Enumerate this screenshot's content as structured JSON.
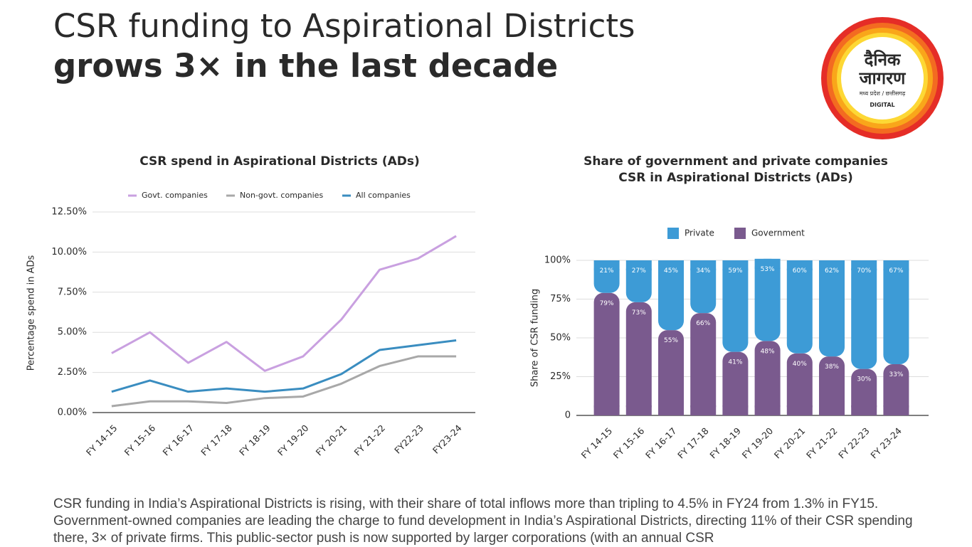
{
  "header": {
    "title": "CSR funding to Aspirational Districts",
    "subtitle": "grows 3× in the last decade"
  },
  "logo": {
    "line1": "दैनिक",
    "line2": "जागरण",
    "region": "मध्य प्रदेश / छत्तीसगढ़",
    "tag": "DIGITAL"
  },
  "body_text": "CSR funding in India’s Aspirational Districts is rising, with their share of total inflows more than tripling to 4.5% in FY24 from 1.3% in FY15. Government-owned companies are leading the charge to fund development in India’s Aspirational Districts, directing 11% of their CSR spending there, 3× of private firms. This public-sector push is now supported by larger corporations (with an annual CSR",
  "chart_data": [
    {
      "type": "line",
      "title": "CSR spend in Aspirational Districts (ADs)",
      "y_label": "Percentage spend in ADs",
      "categories": [
        "FY 14-15",
        "FY 15-16",
        "FY 16-17",
        "FY 17-18",
        "FY 18-19",
        "FY 19-20",
        "FY 20-21",
        "FY 21-22",
        "FY22-23",
        "FY23-24"
      ],
      "series": [
        {
          "name": "Govt. companies",
          "color": "#c9a0e0",
          "values": [
            3.7,
            5.0,
            3.1,
            4.4,
            2.6,
            3.5,
            5.8,
            8.9,
            9.6,
            11.0
          ]
        },
        {
          "name": "Non-govt. companies",
          "color": "#a8a8a8",
          "values": [
            0.4,
            0.7,
            0.7,
            0.6,
            0.9,
            1.0,
            1.8,
            2.9,
            3.5,
            3.5
          ]
        },
        {
          "name": "All companies",
          "color": "#3a8dc0",
          "values": [
            1.3,
            2.0,
            1.3,
            1.5,
            1.3,
            1.5,
            2.4,
            3.9,
            4.2,
            4.5
          ]
        }
      ],
      "ylim": [
        0,
        12.5
      ],
      "yticks": [
        {
          "value": 0,
          "label": "0.00%"
        },
        {
          "value": 2.5,
          "label": "2.50%"
        },
        {
          "value": 5,
          "label": "5.00%"
        },
        {
          "value": 7.5,
          "label": "7.50%"
        },
        {
          "value": 10,
          "label": "10.00%"
        },
        {
          "value": 12.5,
          "label": "12.50%"
        }
      ],
      "grid": true,
      "legend": "top"
    },
    {
      "type": "stacked_bar",
      "title": [
        "Share of government and private companies",
        "CSR in Aspirational Districts (ADs)"
      ],
      "y_label": "Share of CSR funding",
      "categories": [
        "FY 14-15",
        "FY 15-16",
        "FY 16-17",
        "FY 17-18",
        "FY 18-19",
        "FY 19-20",
        "FY 20-21",
        "FY 21-22",
        "FY 22-23",
        "FY 23-24"
      ],
      "series": [
        {
          "name": "Private",
          "color": "#3d9bd6",
          "values": [
            21,
            27,
            45,
            34,
            59,
            53,
            60,
            62,
            70,
            67
          ],
          "value_labels": [
            "21%",
            "27%",
            "45%",
            "34%",
            "59%",
            "53%",
            "60%",
            "62%",
            "70%",
            "67%"
          ]
        },
        {
          "name": "Government",
          "color": "#7a5a8e",
          "values": [
            79,
            73,
            55,
            66,
            41,
            48,
            40,
            38,
            30,
            33
          ],
          "value_labels": [
            "79%",
            "73%",
            "55%",
            "66%",
            "41%",
            "48%",
            "40%",
            "38%",
            "30%",
            "33%"
          ]
        }
      ],
      "ylim": [
        0,
        100
      ],
      "yticks": [
        0,
        {
          "value": 25,
          "label": "25%"
        },
        {
          "value": 50,
          "label": "50%"
        },
        {
          "value": 75,
          "label": "75%"
        },
        {
          "value": 100,
          "label": "100%"
        }
      ],
      "grid": true,
      "legend": "top"
    }
  ]
}
